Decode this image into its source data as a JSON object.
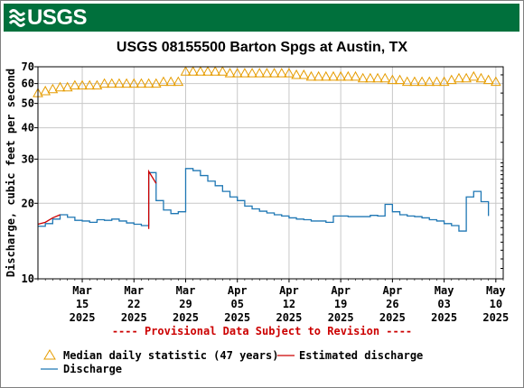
{
  "header": {
    "agency": "USGS",
    "title": "USGS 08155500 Barton Spgs at Austin, TX"
  },
  "colors": {
    "banner": "#00703c",
    "discharge": "#1f77b4",
    "estimated": "#cc0000",
    "median": "#e69c00",
    "grid": "#c8c8c8",
    "provisional": "#cc0000"
  },
  "chart_data": {
    "type": "line",
    "title": "USGS 08155500 Barton Spgs at Austin, TX",
    "ylabel": "Discharge, cubic feet per second",
    "xlabel": "",
    "yscale": "log",
    "ylim": [
      10,
      70
    ],
    "xlim": [
      "2025-03-09",
      "2025-05-11"
    ],
    "grid": true,
    "legend_position": "bottom-left",
    "y_ticks": [
      10,
      20,
      30,
      40,
      50,
      60,
      70
    ],
    "y_tick_labels": [
      "10",
      "20",
      "30",
      "40",
      "50",
      "60",
      "70"
    ],
    "x_ticks": [
      {
        "date": "2025-03-15",
        "month": "Mar",
        "day": "15",
        "year": "2025"
      },
      {
        "date": "2025-03-22",
        "month": "Mar",
        "day": "22",
        "year": "2025"
      },
      {
        "date": "2025-03-29",
        "month": "Mar",
        "day": "29",
        "year": "2025"
      },
      {
        "date": "2025-04-05",
        "month": "Apr",
        "day": "05",
        "year": "2025"
      },
      {
        "date": "2025-04-12",
        "month": "Apr",
        "day": "12",
        "year": "2025"
      },
      {
        "date": "2025-04-19",
        "month": "Apr",
        "day": "19",
        "year": "2025"
      },
      {
        "date": "2025-04-26",
        "month": "Apr",
        "day": "26",
        "year": "2025"
      },
      {
        "date": "2025-05-03",
        "month": "May",
        "day": "03",
        "year": "2025"
      },
      {
        "date": "2025-05-10",
        "month": "May",
        "day": "10",
        "year": "2025"
      }
    ],
    "annotation": "---- Provisional Data Subject to Revision ----",
    "legend": {
      "median": "Median daily statistic (47 years)",
      "estimated": "Estimated discharge",
      "discharge": "Discharge"
    },
    "series": [
      {
        "name": "Median daily statistic (47 years)",
        "style": "triangle-markers",
        "x": [
          "2025-03-09",
          "2025-03-10",
          "2025-03-11",
          "2025-03-12",
          "2025-03-13",
          "2025-03-14",
          "2025-03-15",
          "2025-03-16",
          "2025-03-17",
          "2025-03-18",
          "2025-03-19",
          "2025-03-20",
          "2025-03-21",
          "2025-03-22",
          "2025-03-23",
          "2025-03-24",
          "2025-03-25",
          "2025-03-26",
          "2025-03-27",
          "2025-03-28",
          "2025-03-29",
          "2025-03-30",
          "2025-03-31",
          "2025-04-01",
          "2025-04-02",
          "2025-04-03",
          "2025-04-04",
          "2025-04-05",
          "2025-04-06",
          "2025-04-07",
          "2025-04-08",
          "2025-04-09",
          "2025-04-10",
          "2025-04-11",
          "2025-04-12",
          "2025-04-13",
          "2025-04-14",
          "2025-04-15",
          "2025-04-16",
          "2025-04-17",
          "2025-04-18",
          "2025-04-19",
          "2025-04-20",
          "2025-04-21",
          "2025-04-22",
          "2025-04-23",
          "2025-04-24",
          "2025-04-25",
          "2025-04-26",
          "2025-04-27",
          "2025-04-28",
          "2025-04-29",
          "2025-04-30",
          "2025-05-01",
          "2025-05-02",
          "2025-05-03",
          "2025-05-04",
          "2025-05-05",
          "2025-05-06",
          "2025-05-07",
          "2025-05-08",
          "2025-05-09",
          "2025-05-10"
        ],
        "values": [
          55,
          56,
          57,
          58,
          58,
          59,
          59,
          59,
          59,
          60,
          60,
          60,
          60,
          60,
          60,
          60,
          60,
          61,
          61,
          61,
          67,
          67,
          67,
          67,
          67,
          67,
          66,
          66,
          66,
          66,
          66,
          66,
          66,
          66,
          66,
          65,
          65,
          64,
          64,
          64,
          64,
          64,
          64,
          64,
          63,
          63,
          63,
          63,
          62,
          62,
          61,
          61,
          61,
          61,
          61,
          61,
          62,
          63,
          63,
          64,
          63,
          62,
          61
        ]
      },
      {
        "name": "Estimated discharge",
        "style": "line",
        "segments": [
          {
            "x": [
              "2025-03-09",
              "2025-03-10",
              "2025-03-11",
              "2025-03-12"
            ],
            "values": [
              16.5,
              16.8,
              17.5,
              18.0
            ]
          },
          {
            "x": [
              "2025-03-24",
              "2025-03-24",
              "2025-03-25"
            ],
            "values": [
              15.8,
              26.8,
              24.0
            ]
          }
        ]
      },
      {
        "name": "Discharge",
        "style": "line",
        "x": [
          "2025-03-09",
          "2025-03-10",
          "2025-03-11",
          "2025-03-12",
          "2025-03-13",
          "2025-03-14",
          "2025-03-15",
          "2025-03-16",
          "2025-03-17",
          "2025-03-18",
          "2025-03-19",
          "2025-03-20",
          "2025-03-21",
          "2025-03-22",
          "2025-03-23",
          "2025-03-24",
          "2025-03-25",
          "2025-03-26",
          "2025-03-27",
          "2025-03-28",
          "2025-03-29",
          "2025-03-30",
          "2025-03-31",
          "2025-04-01",
          "2025-04-02",
          "2025-04-03",
          "2025-04-04",
          "2025-04-05",
          "2025-04-06",
          "2025-04-07",
          "2025-04-08",
          "2025-04-09",
          "2025-04-10",
          "2025-04-11",
          "2025-04-12",
          "2025-04-13",
          "2025-04-14",
          "2025-04-15",
          "2025-04-16",
          "2025-04-17",
          "2025-04-18",
          "2025-04-19",
          "2025-04-20",
          "2025-04-21",
          "2025-04-22",
          "2025-04-23",
          "2025-04-24",
          "2025-04-25",
          "2025-04-26",
          "2025-04-27",
          "2025-04-28",
          "2025-04-29",
          "2025-04-30",
          "2025-05-01",
          "2025-05-02",
          "2025-05-03",
          "2025-05-04",
          "2025-05-05",
          "2025-05-06",
          "2025-05-07",
          "2025-05-08",
          "2025-05-09"
        ],
        "values": [
          16.2,
          16.6,
          17.3,
          18.0,
          17.6,
          17.1,
          17.0,
          16.8,
          17.2,
          17.1,
          17.3,
          17.0,
          16.7,
          16.5,
          16.3,
          26.5,
          20.5,
          18.8,
          18.2,
          18.5,
          27.5,
          27.0,
          25.8,
          24.5,
          23.5,
          22.3,
          21.2,
          20.5,
          19.5,
          19.0,
          18.6,
          18.3,
          18.0,
          17.8,
          17.5,
          17.3,
          17.2,
          17.0,
          17.0,
          16.8,
          17.8,
          17.8,
          17.7,
          17.7,
          17.7,
          17.9,
          17.8,
          19.8,
          18.5,
          18.0,
          17.8,
          17.7,
          17.5,
          17.2,
          17.0,
          16.6,
          16.3,
          15.5,
          21.2,
          22.3,
          20.3,
          17.8
        ]
      }
    ]
  }
}
